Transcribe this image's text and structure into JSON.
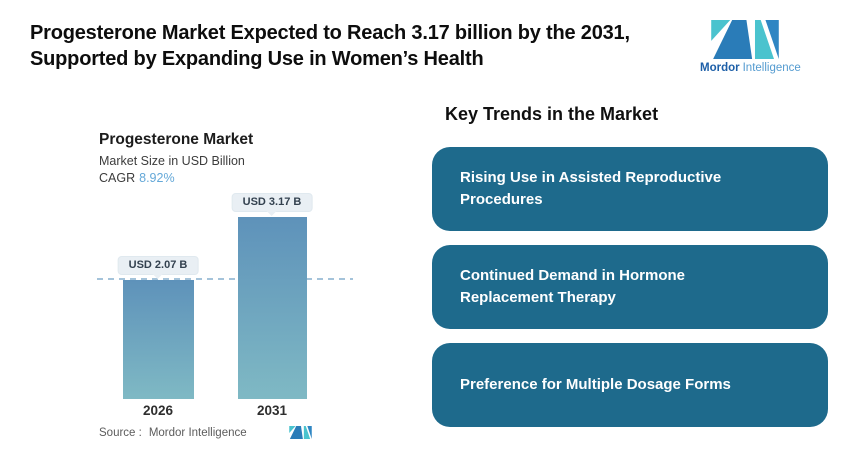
{
  "header": {
    "title_line1": "Progesterone Market Expected to Reach 3.17 billion by the 2031,",
    "title_line2": "Supported by Expanding Use in Women’s Health"
  },
  "brand": {
    "name_bold": "Mordor",
    "name_light": "Intelligence",
    "logo_teal": "#4ac3ce",
    "logo_blue": "#2a7cb8"
  },
  "chart_data": {
    "type": "bar",
    "title": "Progesterone Market",
    "subtitle": "Market Size in USD Billion",
    "cagr_label": "CAGR",
    "cagr_value": "8.92%",
    "categories": [
      "2026",
      "2031"
    ],
    "values": [
      2.07,
      3.17
    ],
    "value_labels": [
      "USD 2.07 B",
      "USD 3.17 B"
    ],
    "ylabel": "USD Billion",
    "ylim": [
      0,
      4.77
    ],
    "reference_line": 2.07,
    "reference_line_style": "dashed",
    "grid": false,
    "legend": false,
    "bar_gradient_top": "#5e92ba",
    "bar_gradient_bottom": "#7fb9c4",
    "source_label": "Source :",
    "source_value": "Mordor Intelligence"
  },
  "trends": {
    "heading": "Key Trends in the Market",
    "box_color": "#1e6a8c",
    "items": [
      {
        "label": "Rising Use in Assisted Reproductive Procedures"
      },
      {
        "label": "Continued Demand in Hormone Replacement Therapy"
      },
      {
        "label": "Preference for Multiple Dosage Forms"
      }
    ]
  }
}
